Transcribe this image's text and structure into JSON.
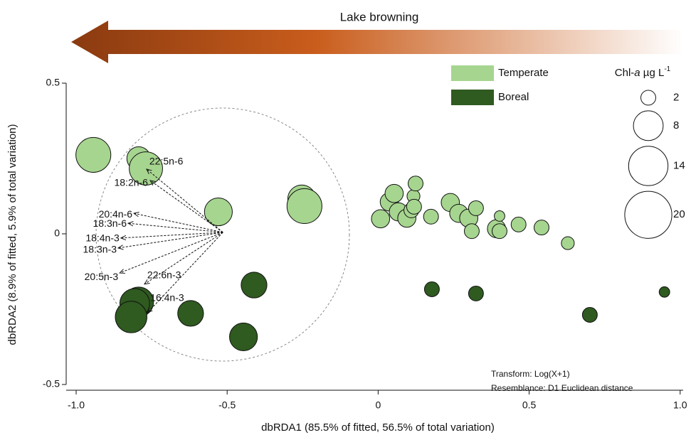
{
  "chart_data": {
    "type": "scatter",
    "banner": "Lake browning",
    "x_label": "dbRDA1 (85.5% of fitted, 56.5% of total variation)",
    "y_label": "dbRDA2 (8.9% of fitted, 5.9% of total variation)",
    "xlim": [
      -1.033,
      1.01
    ],
    "ylim": [
      -0.519,
      0.5
    ],
    "xticks": [
      {
        "value": -1,
        "label": "-1.0"
      },
      -0.5,
      0,
      0.5,
      {
        "value": 1,
        "label": "1.0"
      }
    ],
    "yticks": [
      -0.5,
      0,
      0.5
    ],
    "series": [
      {
        "name": "Temperate",
        "color": "#a6d58f",
        "x": [
          -0.943,
          -0.793,
          -0.769,
          -0.529,
          -0.253,
          -0.244,
          0.008,
          0.037,
          0.053,
          0.067,
          0.095,
          0.11,
          0.117,
          0.124,
          0.119,
          0.175,
          0.239,
          0.267,
          0.3,
          0.324,
          0.31,
          0.392,
          0.402,
          0.402,
          0.465,
          0.541,
          0.628
        ],
        "values": [
          0.262,
          0.25,
          0.217,
          0.073,
          0.116,
          0.092,
          0.05,
          0.106,
          0.134,
          0.073,
          0.052,
          0.078,
          0.125,
          0.167,
          0.09,
          0.057,
          0.104,
          0.068,
          0.052,
          0.085,
          0.009,
          0.017,
          0.059,
          0.009,
          0.031,
          0.021,
          -0.031
        ],
        "sizes": [
          11,
          5,
          10,
          7,
          7,
          11,
          3,
          3,
          3,
          3,
          3,
          2,
          1.5,
          2,
          2,
          2,
          3,
          3,
          3,
          2,
          2,
          3,
          1,
          2,
          2,
          2,
          1.5
        ]
      },
      {
        "name": "Boreal",
        "color": "#2f5a20",
        "x": [
          -0.793,
          -0.806,
          -0.818,
          -0.621,
          -0.411,
          -0.446,
          0.178,
          0.324,
          0.701,
          0.948
        ],
        "values": [
          -0.226,
          -0.231,
          -0.276,
          -0.264,
          -0.17,
          -0.342,
          -0.184,
          -0.198,
          -0.269,
          -0.193
        ],
        "sizes": [
          8,
          8,
          9,
          6,
          6,
          7,
          2,
          2,
          2,
          1
        ]
      }
    ],
    "size_legend": {
      "title": [
        "Chl-",
        "a",
        " µg L",
        "-1"
      ],
      "values": [
        2,
        8,
        14,
        20
      ]
    },
    "vector_origin": [
      -0.514,
      0.005
    ],
    "vectors": [
      {
        "label": "22:5n-6",
        "x": -0.767,
        "y": 0.215
      },
      {
        "label": "18:2n-6",
        "x": -0.755,
        "y": 0.177
      },
      {
        "label": "20:4n-6",
        "x": -0.809,
        "y": 0.068
      },
      {
        "label": "18:3n-6",
        "x": -0.828,
        "y": 0.035
      },
      {
        "label": "18:4n-3",
        "x": -0.852,
        "y": -0.014
      },
      {
        "label": "18:3n-3",
        "x": -0.861,
        "y": -0.047
      },
      {
        "label": "20:5n-3",
        "x": -0.856,
        "y": -0.13
      },
      {
        "label": "22:6n-3",
        "x": -0.774,
        "y": -0.167
      },
      {
        "label": "16:4n-3",
        "x": -0.764,
        "y": -0.262
      }
    ],
    "notes": [
      "Transform: Log(X+1)",
      "Resemblance: D1 Euclidean distance"
    ]
  }
}
